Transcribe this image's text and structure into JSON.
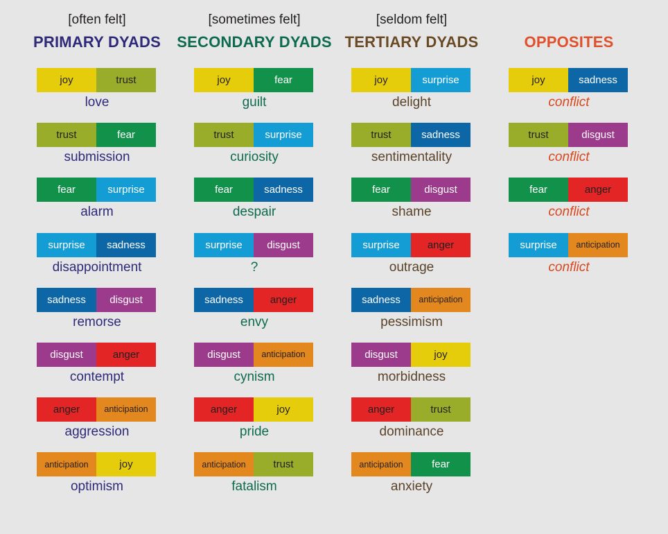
{
  "emotion_colors": {
    "joy": "#e6cd0c",
    "trust": "#99ad2b",
    "fear": "#12914a",
    "surprise": "#149dd5",
    "sadness": "#0d66a6",
    "disgust": "#9c3b8c",
    "anger": "#e32526",
    "anticipation": "#e3871f"
  },
  "emotion_text_colors": {
    "joy": "#231f20",
    "trust": "#231f20",
    "fear": "#ffffff",
    "surprise": "#ffffff",
    "sadness": "#ffffff",
    "disgust": "#ffffff",
    "anger": "#231f20",
    "anticipation": "#231f20"
  },
  "columns": [
    {
      "frequency": "[often felt]",
      "heading": "PRIMARY DYADS",
      "heading_color": "#2e2a79",
      "result_color": "#2e2a79",
      "italic": false,
      "dyads": [
        {
          "a": "joy",
          "b": "trust",
          "result": "love"
        },
        {
          "a": "trust",
          "b": "fear",
          "result": "submission"
        },
        {
          "a": "fear",
          "b": "surprise",
          "result": "alarm"
        },
        {
          "a": "surprise",
          "b": "sadness",
          "result": "disappointment"
        },
        {
          "a": "sadness",
          "b": "disgust",
          "result": "remorse"
        },
        {
          "a": "disgust",
          "b": "anger",
          "result": "contempt"
        },
        {
          "a": "anger",
          "b": "anticipation",
          "result": "aggression"
        },
        {
          "a": "anticipation",
          "b": "joy",
          "result": "optimism"
        }
      ]
    },
    {
      "frequency": "[sometimes felt]",
      "heading": "SECONDARY DYADS",
      "heading_color": "#0e6b4f",
      "result_color": "#0e6b4f",
      "italic": false,
      "dyads": [
        {
          "a": "joy",
          "b": "fear",
          "result": "guilt"
        },
        {
          "a": "trust",
          "b": "surprise",
          "result": "curiosity"
        },
        {
          "a": "fear",
          "b": "sadness",
          "result": "despair"
        },
        {
          "a": "surprise",
          "b": "disgust",
          "result": "?"
        },
        {
          "a": "sadness",
          "b": "anger",
          "result": "envy"
        },
        {
          "a": "disgust",
          "b": "anticipation",
          "result": "cynism"
        },
        {
          "a": "anger",
          "b": "joy",
          "result": "pride"
        },
        {
          "a": "anticipation",
          "b": "trust",
          "result": "fatalism"
        }
      ]
    },
    {
      "frequency": "[seldom felt]",
      "heading": "TERTIARY DYADS",
      "heading_color": "#6a4a25",
      "result_color": "#5b4329",
      "italic": false,
      "dyads": [
        {
          "a": "joy",
          "b": "surprise",
          "result": "delight"
        },
        {
          "a": "trust",
          "b": "sadness",
          "result": "sentimentality"
        },
        {
          "a": "fear",
          "b": "disgust",
          "result": "shame"
        },
        {
          "a": "surprise",
          "b": "anger",
          "result": "outrage"
        },
        {
          "a": "sadness",
          "b": "anticipation",
          "result": "pessimism"
        },
        {
          "a": "disgust",
          "b": "joy",
          "result": "morbidness"
        },
        {
          "a": "anger",
          "b": "trust",
          "result": "dominance"
        },
        {
          "a": "anticipation",
          "b": "fear",
          "result": "anxiety"
        }
      ]
    },
    {
      "frequency": "",
      "heading": "OPPOSITES",
      "heading_color": "#e0502a",
      "result_color": "#d9481f",
      "italic": true,
      "dyads": [
        {
          "a": "joy",
          "b": "sadness",
          "result": "conflict"
        },
        {
          "a": "trust",
          "b": "disgust",
          "result": "conflict"
        },
        {
          "a": "fear",
          "b": "anger",
          "result": "conflict"
        },
        {
          "a": "surprise",
          "b": "anticipation",
          "result": "conflict"
        }
      ]
    }
  ]
}
